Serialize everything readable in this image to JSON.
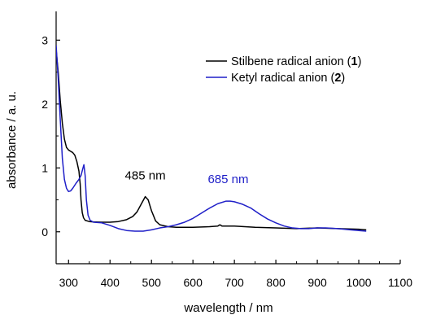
{
  "chart_data": {
    "type": "line",
    "title": "",
    "xlabel": "wavelength / nm",
    "ylabel": "absorbance / a. u.",
    "xlim": [
      270,
      1100
    ],
    "ylim": [
      -0.5,
      3.45
    ],
    "x_ticks": [
      300,
      400,
      500,
      600,
      700,
      800,
      900,
      1000,
      1100
    ],
    "y_ticks": [
      0,
      1,
      2,
      3
    ],
    "legend_position": "top-right",
    "grid": false,
    "series": [
      {
        "name_prefix": "Stilbene radical anion (",
        "name_bold": "1",
        "name_suffix": ")",
        "color": "#000000",
        "points": [
          [
            270,
            2.85
          ],
          [
            275,
            2.5
          ],
          [
            280,
            2.05
          ],
          [
            285,
            1.7
          ],
          [
            290,
            1.45
          ],
          [
            295,
            1.32
          ],
          [
            300,
            1.28
          ],
          [
            305,
            1.26
          ],
          [
            310,
            1.24
          ],
          [
            315,
            1.2
          ],
          [
            320,
            1.1
          ],
          [
            325,
            0.95
          ],
          [
            328,
            0.75
          ],
          [
            330,
            0.5
          ],
          [
            333,
            0.3
          ],
          [
            336,
            0.22
          ],
          [
            340,
            0.18
          ],
          [
            350,
            0.16
          ],
          [
            360,
            0.155
          ],
          [
            380,
            0.15
          ],
          [
            400,
            0.15
          ],
          [
            420,
            0.16
          ],
          [
            440,
            0.19
          ],
          [
            455,
            0.24
          ],
          [
            465,
            0.31
          ],
          [
            475,
            0.43
          ],
          [
            485,
            0.55
          ],
          [
            492,
            0.5
          ],
          [
            500,
            0.33
          ],
          [
            510,
            0.17
          ],
          [
            520,
            0.11
          ],
          [
            540,
            0.08
          ],
          [
            560,
            0.07
          ],
          [
            600,
            0.07
          ],
          [
            640,
            0.08
          ],
          [
            660,
            0.09
          ],
          [
            665,
            0.11
          ],
          [
            670,
            0.09
          ],
          [
            700,
            0.09
          ],
          [
            750,
            0.07
          ],
          [
            800,
            0.06
          ],
          [
            850,
            0.05
          ],
          [
            900,
            0.06
          ],
          [
            950,
            0.05
          ],
          [
            1000,
            0.04
          ],
          [
            1018,
            0.03
          ]
        ]
      },
      {
        "name_prefix": "Ketyl radical anion (",
        "name_bold": "2",
        "name_suffix": ")",
        "color": "#1f1fc8",
        "points": [
          [
            270,
            2.92
          ],
          [
            275,
            2.4
          ],
          [
            280,
            1.75
          ],
          [
            285,
            1.15
          ],
          [
            290,
            0.82
          ],
          [
            295,
            0.68
          ],
          [
            300,
            0.63
          ],
          [
            305,
            0.64
          ],
          [
            310,
            0.68
          ],
          [
            318,
            0.76
          ],
          [
            325,
            0.82
          ],
          [
            330,
            0.88
          ],
          [
            334,
            0.98
          ],
          [
            337,
            1.05
          ],
          [
            340,
            0.88
          ],
          [
            343,
            0.5
          ],
          [
            347,
            0.26
          ],
          [
            352,
            0.18
          ],
          [
            360,
            0.15
          ],
          [
            380,
            0.14
          ],
          [
            400,
            0.1
          ],
          [
            420,
            0.05
          ],
          [
            440,
            0.02
          ],
          [
            460,
            0.01
          ],
          [
            480,
            0.01
          ],
          [
            500,
            0.03
          ],
          [
            520,
            0.06
          ],
          [
            540,
            0.08
          ],
          [
            560,
            0.11
          ],
          [
            580,
            0.15
          ],
          [
            600,
            0.21
          ],
          [
            620,
            0.29
          ],
          [
            640,
            0.37
          ],
          [
            660,
            0.44
          ],
          [
            680,
            0.48
          ],
          [
            690,
            0.48
          ],
          [
            700,
            0.47
          ],
          [
            720,
            0.43
          ],
          [
            740,
            0.37
          ],
          [
            760,
            0.28
          ],
          [
            780,
            0.2
          ],
          [
            800,
            0.14
          ],
          [
            820,
            0.09
          ],
          [
            840,
            0.06
          ],
          [
            860,
            0.05
          ],
          [
            880,
            0.05
          ],
          [
            900,
            0.06
          ],
          [
            920,
            0.06
          ],
          [
            950,
            0.05
          ],
          [
            980,
            0.03
          ],
          [
            1000,
            0.02
          ],
          [
            1018,
            0.01
          ]
        ]
      }
    ],
    "annotations": [
      {
        "text": "485 nm",
        "color": "#000000",
        "x": 485,
        "y": 0.82
      },
      {
        "text": "685 nm",
        "color": "#1f1fc8",
        "x": 685,
        "y": 0.76
      }
    ]
  }
}
